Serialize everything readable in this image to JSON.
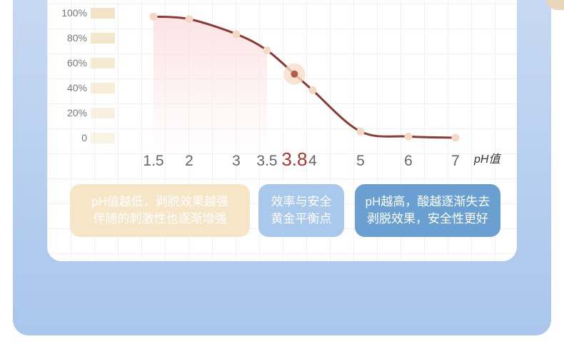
{
  "chart_data": {
    "type": "line",
    "x": [
      "1.5",
      "2",
      "3",
      "3.5",
      "3.8",
      "4",
      "5",
      "6",
      "7"
    ],
    "y": [
      97,
      95,
      83,
      70,
      51,
      38,
      5,
      1,
      0
    ],
    "highlight_x": "3.8",
    "xlabel": "pH值",
    "yticks": [
      "100%",
      "80%",
      "60%",
      "40%",
      "20%",
      "0"
    ],
    "ylim": [
      0,
      100
    ],
    "grid": true,
    "colors": {
      "line": "#8b3a35",
      "point": "#f3d9c4",
      "highlight": "#b35d4b",
      "ybar": "#f3e3c4",
      "fill": "#fbe4e6"
    }
  },
  "notes": [
    {
      "line1": "pH值越低，剥脱效果越强",
      "line2": "伴随的刺激性也逐渐增强"
    },
    {
      "line1": "效率与安全",
      "line2": "黄金平衡点"
    },
    {
      "line1": "pH越高，酸越逐渐失去",
      "line2": "剥脱效果，安全性更好"
    }
  ]
}
